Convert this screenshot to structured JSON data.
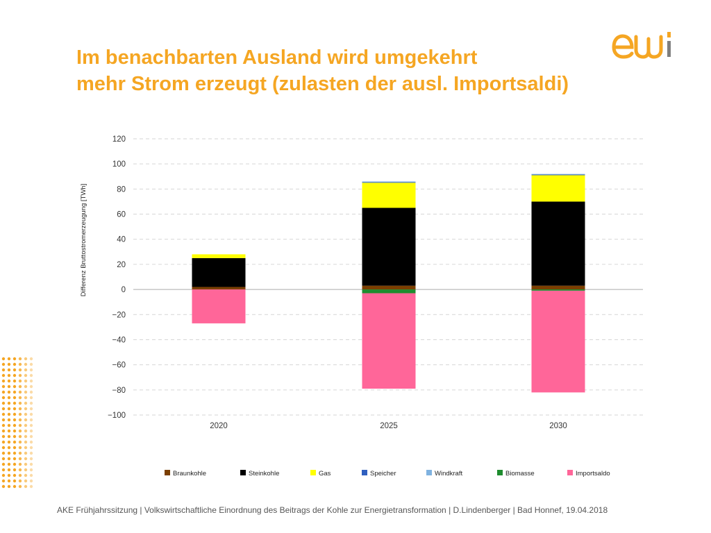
{
  "title": {
    "line1": "Im benachbarten Ausland wird umgekehrt",
    "line2": "mehr Strom erzeugt (zulasten der ausl. Importsaldi)"
  },
  "logo": {
    "text": "ewi",
    "icon": "ewi-logo",
    "color": "#F5A623",
    "accent": "#7F7F7F"
  },
  "footer": {
    "text": "AKE Frühjahrssitzung | Volkswirtschaftliche Einordnung des Beitrags der Kohle zur Energietransformation | D.Lindenberger | Bad Honnef, 19.04.2018"
  },
  "chart_data": {
    "type": "bar",
    "stacked": true,
    "title": "",
    "xlabel": "",
    "ylabel": "Differenz Bruttostromerzeugung  [TWh]",
    "ylim": [
      -100,
      120
    ],
    "yticks": [
      120,
      100,
      80,
      60,
      40,
      20,
      0,
      -20,
      -40,
      -60,
      -80,
      -100
    ],
    "ytick_labels": [
      "120",
      "100",
      "80",
      "60",
      "40",
      "20",
      "0",
      "−20",
      "−40",
      "−60",
      "−80",
      "−100"
    ],
    "grid": true,
    "legend_position": "bottom",
    "categories": [
      "2020",
      "2025",
      "2030"
    ],
    "series": [
      {
        "name": "Braunkohle",
        "color": "#7B3F00",
        "values": [
          2,
          3,
          3
        ]
      },
      {
        "name": "Steinkohle",
        "color": "#000000",
        "values": [
          23,
          62,
          67
        ]
      },
      {
        "name": "Gas",
        "color": "#FFFF00",
        "values": [
          3,
          20,
          21
        ]
      },
      {
        "name": "Speicher",
        "color": "#2F5FBF",
        "values": [
          0,
          0.5,
          0.5
        ]
      },
      {
        "name": "Windkraft",
        "color": "#7FB2E0",
        "values": [
          0,
          0.5,
          0.5
        ]
      },
      {
        "name": "Biomasse",
        "color": "#1E8C2E",
        "values": [
          0,
          -3,
          -1
        ]
      },
      {
        "name": "Importsaldo",
        "color": "#FF6699",
        "values": [
          -27,
          -76,
          -81
        ]
      }
    ]
  }
}
